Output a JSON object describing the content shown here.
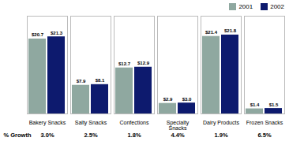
{
  "chart_data": {
    "type": "bar",
    "categories": [
      "Bakery Snacks",
      "Salty Snacks",
      "Confections",
      "Specialty\nSnacks",
      "Dairy Products",
      "Frozen Snacks"
    ],
    "series": [
      {
        "name": "2001",
        "color": "#8fa8a0",
        "values": [
          20.7,
          7.9,
          12.7,
          2.9,
          21.4,
          1.4
        ],
        "value_labels": [
          "$20.7",
          "$7.9",
          "$12.7",
          "$2.9",
          "$21.4",
          "$1.4"
        ]
      },
      {
        "name": "2002",
        "color": "#0d1a6e",
        "values": [
          21.3,
          8.1,
          12.9,
          3.0,
          21.8,
          1.5
        ],
        "value_labels": [
          "$21.3",
          "$8.1",
          "$12.9",
          "$3.0",
          "$21.8",
          "$1.5"
        ]
      }
    ],
    "ylim": [
      0,
      27
    ],
    "data_labels": true,
    "tick_labels": "x",
    "legend": "upper right",
    "growth": {
      "name": "% Growth",
      "values": [
        3.0,
        2.5,
        1.8,
        4.4,
        1.9,
        6.5
      ],
      "value_labels": [
        "3.0%",
        "2.5%",
        "1.8%",
        "4.4%",
        "1.9%",
        "6.5%"
      ]
    }
  }
}
